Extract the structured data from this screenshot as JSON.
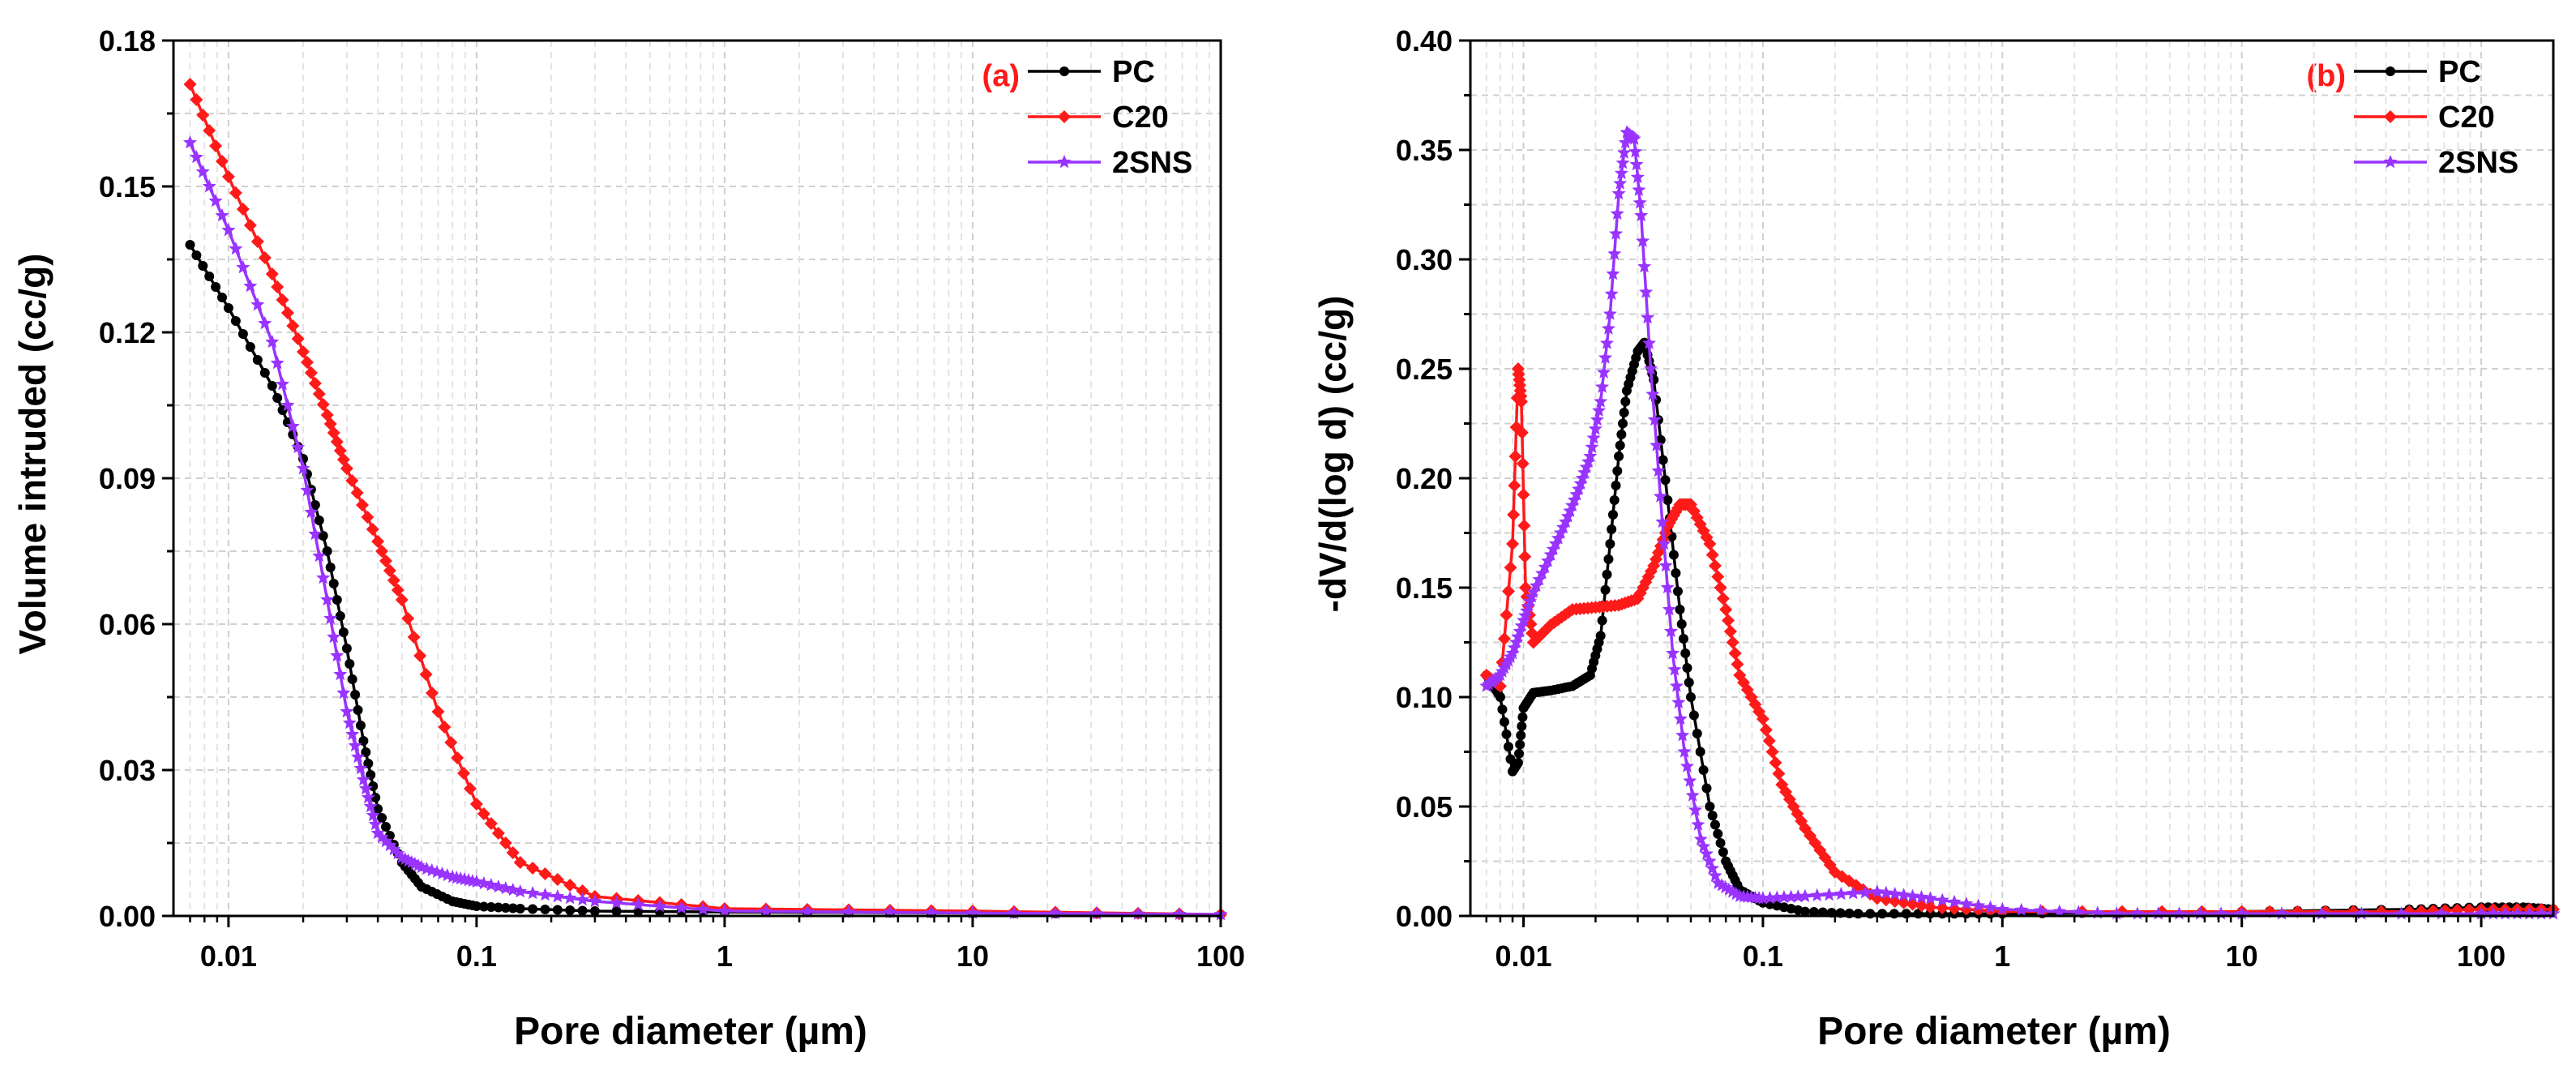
{
  "colors": {
    "PC": "#000000",
    "C20": "#ff1a1a",
    "2SNS": "#9933ff",
    "panel_label": "#ff1a1a"
  },
  "chart_data": [
    {
      "type": "line",
      "panel_label": "(a)",
      "title": "",
      "xlabel": "Pore diameter (µm)",
      "ylabel": "Volume intruded (cc/g)",
      "xscale": "log",
      "xlim": [
        0.006,
        100
      ],
      "ylim": [
        0,
        0.18
      ],
      "xticks": [
        0.01,
        0.1,
        1,
        10,
        100
      ],
      "xtick_labels": [
        "0.01",
        "0.1",
        "1",
        "10",
        "100"
      ],
      "yticks": [
        0,
        0.03,
        0.06,
        0.09,
        0.12,
        0.15,
        0.18
      ],
      "ytick_labels": [
        "0.00",
        "0.03",
        "0.06",
        "0.09",
        "0.12",
        "0.15",
        "0.18"
      ],
      "grid": true,
      "legend_position": "top-right",
      "series": [
        {
          "name": "PC",
          "color": "#000000",
          "marker": "circle",
          "x": [
            0.007,
            0.01,
            0.015,
            0.02,
            0.025,
            0.03,
            0.035,
            0.04,
            0.05,
            0.06,
            0.08,
            0.1,
            0.15,
            0.3,
            1,
            10,
            100
          ],
          "y": [
            0.138,
            0.125,
            0.109,
            0.094,
            0.075,
            0.055,
            0.036,
            0.022,
            0.011,
            0.006,
            0.003,
            0.002,
            0.0015,
            0.001,
            0.0008,
            0.0006,
            0.0003
          ]
        },
        {
          "name": "C20",
          "color": "#ff1a1a",
          "marker": "diamond",
          "x": [
            0.007,
            0.01,
            0.015,
            0.02,
            0.025,
            0.03,
            0.04,
            0.05,
            0.07,
            0.1,
            0.15,
            0.3,
            1,
            10,
            100
          ],
          "y": [
            0.171,
            0.152,
            0.132,
            0.116,
            0.103,
            0.092,
            0.077,
            0.065,
            0.042,
            0.023,
            0.011,
            0.004,
            0.0015,
            0.001,
            0.0003
          ]
        },
        {
          "name": "2SNS",
          "color": "#9933ff",
          "marker": "star",
          "x": [
            0.007,
            0.01,
            0.015,
            0.02,
            0.025,
            0.03,
            0.035,
            0.04,
            0.05,
            0.06,
            0.08,
            0.1,
            0.15,
            0.3,
            1,
            10,
            100
          ],
          "y": [
            0.159,
            0.141,
            0.118,
            0.092,
            0.065,
            0.042,
            0.028,
            0.017,
            0.012,
            0.01,
            0.008,
            0.007,
            0.005,
            0.003,
            0.001,
            0.0006,
            0.0003
          ]
        }
      ]
    },
    {
      "type": "line",
      "panel_label": "(b)",
      "title": "",
      "xlabel": "Pore diameter (µm)",
      "ylabel": "-dV/d(log d) (cc/g)",
      "xscale": "log",
      "xlim": [
        0.006,
        200
      ],
      "ylim": [
        0,
        0.4
      ],
      "xticks": [
        0.01,
        0.1,
        1,
        10,
        100
      ],
      "xtick_labels": [
        "0.01",
        "0.1",
        "1",
        "10",
        "100"
      ],
      "yticks": [
        0,
        0.05,
        0.1,
        0.15,
        0.2,
        0.25,
        0.3,
        0.35,
        0.4
      ],
      "ytick_labels": [
        "0.00",
        "0.05",
        "0.10",
        "0.15",
        "0.20",
        "0.25",
        "0.30",
        "0.35",
        "0.40"
      ],
      "grid": true,
      "legend_position": "top-right",
      "series": [
        {
          "name": "PC",
          "color": "#000000",
          "marker": "circle",
          "x": [
            0.007,
            0.008,
            0.009,
            0.0095,
            0.01,
            0.011,
            0.013,
            0.016,
            0.019,
            0.021,
            0.023,
            0.025,
            0.027,
            0.03,
            0.032,
            0.035,
            0.04,
            0.045,
            0.05,
            0.06,
            0.07,
            0.08,
            0.1,
            0.15,
            0.25,
            0.5,
            1,
            10,
            50,
            100,
            150,
            200
          ],
          "y": [
            0.11,
            0.1,
            0.066,
            0.07,
            0.095,
            0.102,
            0.103,
            0.105,
            0.11,
            0.128,
            0.17,
            0.21,
            0.24,
            0.258,
            0.262,
            0.245,
            0.19,
            0.14,
            0.1,
            0.05,
            0.025,
            0.012,
            0.006,
            0.002,
            0.001,
            0.001,
            0.001,
            0.002,
            0.003,
            0.004,
            0.004,
            0.003
          ]
        },
        {
          "name": "C20",
          "color": "#ff1a1a",
          "marker": "diamond",
          "x": [
            0.007,
            0.008,
            0.009,
            0.0095,
            0.0098,
            0.0102,
            0.011,
            0.013,
            0.016,
            0.02,
            0.025,
            0.03,
            0.035,
            0.04,
            0.045,
            0.05,
            0.06,
            0.07,
            0.08,
            0.1,
            0.12,
            0.15,
            0.2,
            0.3,
            0.5,
            1,
            10,
            50,
            100,
            200
          ],
          "y": [
            0.11,
            0.105,
            0.17,
            0.25,
            0.235,
            0.15,
            0.125,
            0.133,
            0.14,
            0.141,
            0.142,
            0.145,
            0.16,
            0.178,
            0.188,
            0.188,
            0.17,
            0.14,
            0.11,
            0.09,
            0.06,
            0.04,
            0.02,
            0.008,
            0.004,
            0.002,
            0.002,
            0.002,
            0.003,
            0.003
          ]
        },
        {
          "name": "2SNS",
          "color": "#9933ff",
          "marker": "star",
          "x": [
            0.007,
            0.008,
            0.009,
            0.01,
            0.011,
            0.013,
            0.015,
            0.017,
            0.019,
            0.021,
            0.023,
            0.025,
            0.027,
            0.029,
            0.031,
            0.034,
            0.038,
            0.042,
            0.047,
            0.055,
            0.065,
            0.08,
            0.1,
            0.15,
            0.3,
            0.5,
            1,
            3,
            10,
            100,
            200
          ],
          "y": [
            0.105,
            0.11,
            0.12,
            0.135,
            0.148,
            0.165,
            0.18,
            0.195,
            0.21,
            0.235,
            0.275,
            0.33,
            0.358,
            0.355,
            0.32,
            0.25,
            0.18,
            0.12,
            0.075,
            0.035,
            0.015,
            0.009,
            0.008,
            0.009,
            0.011,
            0.008,
            0.003,
            0.001,
            0.001,
            0.001,
            0.001
          ]
        }
      ]
    }
  ]
}
